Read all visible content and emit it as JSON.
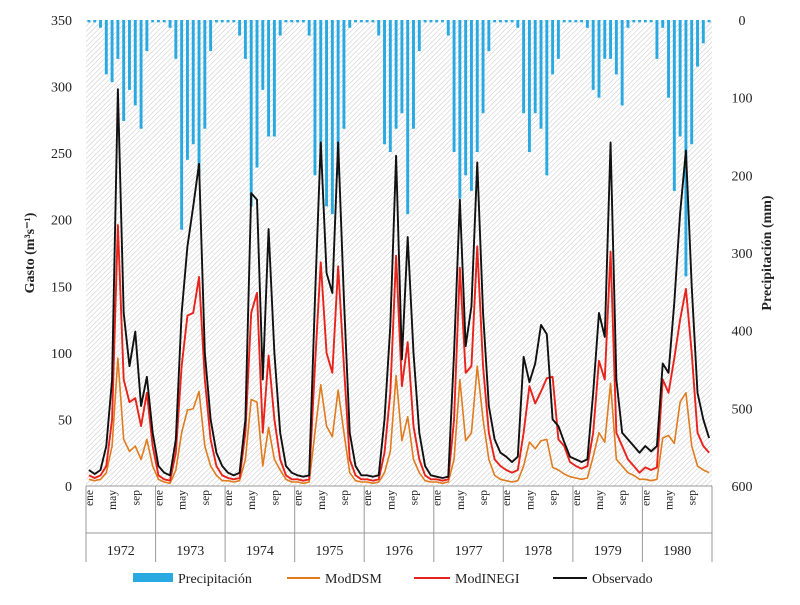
{
  "chart_data": {
    "type": "line",
    "title": "",
    "ylabel": "Gasto",
    "ylabel_unit": "(m³s⁻¹)",
    "y2label": "Precipitación (mm)",
    "ylim": [
      0,
      350
    ],
    "y2lim": [
      0,
      600
    ],
    "y2_inverted": true,
    "yticks": [
      0,
      50,
      100,
      150,
      200,
      250,
      300,
      350
    ],
    "y2ticks": [
      0,
      100,
      200,
      300,
      400,
      500,
      600
    ],
    "years": [
      "1972",
      "1973",
      "1974",
      "1975",
      "1976",
      "1977",
      "1978",
      "1979",
      "1980"
    ],
    "month_labels": [
      "ene",
      "may",
      "sep"
    ],
    "legend": [
      "Precipitación",
      "ModDSM",
      "ModINEGI",
      "Observado"
    ],
    "colors": {
      "Precipitación": "#29a9e1",
      "ModDSM": "#e07b1e",
      "ModINEGI": "#e8231c",
      "Observado": "#111111"
    },
    "series": [
      {
        "name": "Precipitación",
        "type": "bar",
        "axis": "y2",
        "values": [
          3,
          3,
          10,
          70,
          80,
          50,
          130,
          90,
          110,
          140,
          40,
          3,
          3,
          3,
          10,
          50,
          270,
          180,
          160,
          200,
          140,
          40,
          3,
          3,
          3,
          3,
          20,
          50,
          240,
          190,
          90,
          150,
          150,
          20,
          3,
          3,
          3,
          3,
          20,
          200,
          190,
          240,
          250,
          200,
          140,
          10,
          3,
          3,
          3,
          3,
          20,
          160,
          170,
          140,
          120,
          250,
          140,
          40,
          3,
          3,
          3,
          3,
          20,
          170,
          230,
          200,
          220,
          170,
          120,
          40,
          3,
          3,
          3,
          3,
          10,
          120,
          170,
          120,
          140,
          200,
          70,
          50,
          3,
          3,
          3,
          3,
          10,
          90,
          100,
          50,
          50,
          70,
          110,
          10,
          3,
          3,
          3,
          3,
          50,
          10,
          100,
          220,
          150,
          330,
          160,
          60,
          30,
          3
        ]
      },
      {
        "name": "ModDSM",
        "type": "line",
        "axis": "y",
        "values": [
          5,
          4,
          5,
          10,
          30,
          96,
          35,
          26,
          30,
          20,
          35,
          15,
          5,
          3,
          2,
          12,
          40,
          57,
          58,
          71,
          30,
          15,
          8,
          4,
          4,
          3,
          4,
          20,
          65,
          63,
          15,
          44,
          20,
          12,
          5,
          3,
          3,
          2,
          3,
          40,
          76,
          45,
          37,
          72,
          40,
          10,
          4,
          3,
          3,
          2,
          3,
          10,
          26,
          83,
          34,
          52,
          20,
          10,
          4,
          3,
          3,
          2,
          3,
          20,
          80,
          34,
          40,
          90,
          50,
          20,
          8,
          5,
          4,
          3,
          4,
          15,
          33,
          28,
          34,
          35,
          14,
          12,
          9,
          7,
          6,
          5,
          6,
          22,
          40,
          33,
          77,
          20,
          15,
          10,
          8,
          5,
          5,
          4,
          5,
          36,
          38,
          32,
          63,
          70,
          30,
          15,
          12,
          10
        ]
      },
      {
        "name": "ModINEGI",
        "type": "line",
        "axis": "y",
        "values": [
          8,
          6,
          8,
          15,
          50,
          196,
          80,
          63,
          66,
          45,
          70,
          30,
          8,
          5,
          4,
          25,
          90,
          128,
          130,
          157,
          80,
          35,
          15,
          8,
          6,
          5,
          6,
          40,
          130,
          145,
          40,
          98,
          50,
          20,
          8,
          5,
          5,
          4,
          5,
          90,
          168,
          100,
          85,
          165,
          90,
          20,
          8,
          5,
          5,
          4,
          5,
          25,
          70,
          173,
          75,
          108,
          45,
          20,
          8,
          5,
          5,
          4,
          5,
          50,
          164,
          85,
          90,
          180,
          90,
          40,
          20,
          15,
          12,
          10,
          12,
          40,
          75,
          62,
          71,
          81,
          82,
          35,
          30,
          18,
          15,
          13,
          15,
          40,
          94,
          80,
          176,
          40,
          30,
          20,
          15,
          10,
          14,
          12,
          14,
          80,
          70,
          96,
          125,
          148,
          100,
          40,
          30,
          25
        ]
      },
      {
        "name": "Observado",
        "type": "line",
        "axis": "y",
        "values": [
          12,
          9,
          12,
          30,
          80,
          298,
          130,
          90,
          116,
          60,
          82,
          40,
          15,
          10,
          8,
          35,
          130,
          180,
          210,
          242,
          100,
          50,
          25,
          15,
          10,
          8,
          10,
          50,
          220,
          215,
          80,
          193,
          100,
          40,
          15,
          10,
          8,
          7,
          8,
          140,
          258,
          160,
          145,
          258,
          140,
          40,
          15,
          8,
          8,
          7,
          8,
          50,
          120,
          248,
          95,
          187,
          100,
          40,
          15,
          8,
          7,
          6,
          7,
          100,
          215,
          105,
          135,
          243,
          130,
          60,
          35,
          25,
          22,
          18,
          22,
          97,
          78,
          92,
          121,
          114,
          50,
          45,
          33,
          22,
          20,
          18,
          20,
          70,
          130,
          112,
          258,
          80,
          40,
          35,
          30,
          25,
          30,
          26,
          30,
          92,
          85,
          138,
          205,
          252,
          150,
          70,
          50,
          36
        ]
      }
    ]
  }
}
